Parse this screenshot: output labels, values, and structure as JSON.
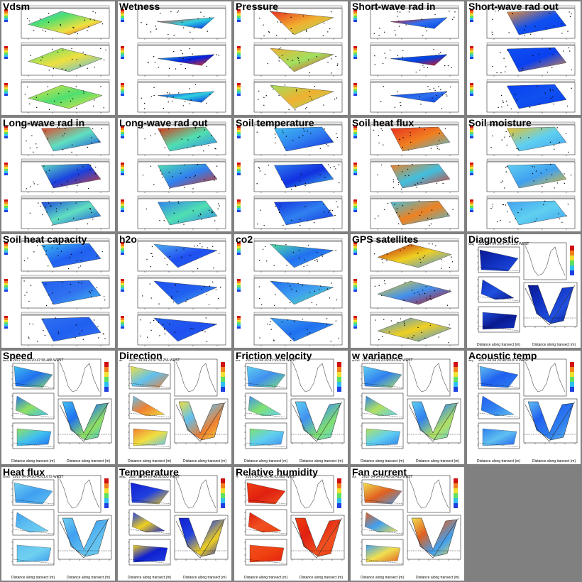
{
  "map_tiles": [
    {
      "id": "vdsm",
      "title": "Vdsm",
      "col": 0,
      "row": 0,
      "colors": [
        "#4ab8f0",
        "#4fe070",
        "#f0e040",
        "#e84030"
      ],
      "shape": "diamond"
    },
    {
      "id": "wetness",
      "title": "Wetness",
      "col": 1,
      "row": 0,
      "colors": [
        "#f03020",
        "#30d0e0",
        "#0020e0"
      ],
      "shape": "sliver"
    },
    {
      "id": "pressure",
      "title": "Pressure",
      "col": 2,
      "row": 0,
      "colors": [
        "#e83020",
        "#f0b030",
        "#a0e060"
      ],
      "shape": "triangle"
    },
    {
      "id": "sw-rad-in",
      "title": "Short-wave rad in",
      "col": 3,
      "row": 0,
      "colors": [
        "#e81010",
        "#3070f0",
        "#0040e0"
      ],
      "shape": "sliver"
    },
    {
      "id": "sw-rad-out",
      "title": "Short-wave rad out",
      "col": 4,
      "row": 0,
      "colors": [
        "#f09030",
        "#1050f0",
        "#0a40f0"
      ],
      "shape": "quad"
    },
    {
      "id": "lw-rad-in",
      "title": "Long-wave rad in",
      "col": 0,
      "row": 1,
      "colors": [
        "#e84020",
        "#60e0c0",
        "#1840e0"
      ],
      "shape": "quad"
    },
    {
      "id": "lw-rad-out",
      "title": "Long-wave rad out",
      "col": 1,
      "row": 1,
      "colors": [
        "#e03010",
        "#50e0b0",
        "#3080f0"
      ],
      "shape": "quad"
    },
    {
      "id": "soil-temp",
      "title": "Soil temperature",
      "col": 2,
      "row": 1,
      "colors": [
        "#40c0f0",
        "#3080f0",
        "#1030e0"
      ],
      "shape": "quad"
    },
    {
      "id": "soil-heat-flux",
      "title": "Soil heat flux",
      "col": 3,
      "row": 1,
      "colors": [
        "#e83020",
        "#f08020",
        "#40c0e0"
      ],
      "shape": "quad"
    },
    {
      "id": "soil-moisture",
      "title": "Soil moisture",
      "col": 4,
      "row": 1,
      "colors": [
        "#f0c020",
        "#60d0f0",
        "#40a0f0"
      ],
      "shape": "quad"
    },
    {
      "id": "soil-heat-cap",
      "title": "Soil heat capacity",
      "col": 0,
      "row": 2,
      "colors": [
        "#40c0f0",
        "#2060f0",
        "#3070f0"
      ],
      "shape": "quad"
    },
    {
      "id": "h2o",
      "title": "h2o",
      "col": 1,
      "row": 2,
      "colors": [
        "#50b0f0",
        "#2050f0",
        "#2060f0"
      ],
      "shape": "triangle"
    },
    {
      "id": "co2",
      "title": "co2",
      "col": 2,
      "row": 2,
      "colors": [
        "#50e0a0",
        "#2070f0",
        "#40a0f0"
      ],
      "shape": "triangle"
    },
    {
      "id": "gps-sat",
      "title": "GPS satellites",
      "col": 3,
      "row": 2,
      "colors": [
        "#c01010",
        "#f0d020",
        "#4090f0"
      ],
      "shape": "diamond"
    }
  ],
  "transect_tiles": [
    {
      "id": "diagnostic",
      "title": "Diagnostic",
      "col": 4,
      "row": 2,
      "timestamp": "2017 04 04 20:47:57.129 WEST",
      "unit": "Mag",
      "colors": [
        "#0a1a90",
        "#1030c0",
        "#2050e0"
      ]
    },
    {
      "id": "speed",
      "title": "Speed",
      "col": 0,
      "row": 3,
      "timestamp": "2017 04 04 20:47:58.488 WEST",
      "unit": "km/h",
      "colors": [
        "#40c0f0",
        "#2070f0",
        "#90e060"
      ]
    },
    {
      "id": "direction",
      "title": "Direction",
      "col": 1,
      "row": 3,
      "timestamp": "2017 04 04 20:47:59.256 WEST",
      "unit": "dir",
      "colors": [
        "#f0e040",
        "#60c0f0",
        "#f08030"
      ]
    },
    {
      "id": "friction-velocity",
      "title": "Friction velocity",
      "col": 2,
      "row": 3,
      "timestamp": "2017 04 04 20:47:59.914 WEST",
      "unit": "m/s",
      "colors": [
        "#60d0f0",
        "#4090f0",
        "#80e070"
      ]
    },
    {
      "id": "w-variance",
      "title": "w variance",
      "col": 3,
      "row": 3,
      "timestamp": "2017 04 04 20:48:00.302 WEST",
      "unit": "m2/s2",
      "colors": [
        "#60d0f0",
        "#3080f0",
        "#b0e060"
      ]
    },
    {
      "id": "acoustic-temp",
      "title": "Acoustic temp",
      "col": 4,
      "row": 3,
      "timestamp": "2017 04 04 20:48:00.874 WEST",
      "unit": "deg",
      "colors": [
        "#60c0f0",
        "#2060f0",
        "#3080f0"
      ]
    },
    {
      "id": "heat-flux",
      "title": "Heat flux",
      "col": 0,
      "row": 4,
      "timestamp": "2017 04 04 20:48:01.079 WEST",
      "unit": "W/m2",
      "colors": [
        "#70d0f0",
        "#40a0f0",
        "#60c0f0"
      ]
    },
    {
      "id": "temperature",
      "title": "Temperature",
      "col": 1,
      "row": 4,
      "timestamp": "2017 04 04 20:48:01.653 WEST",
      "unit": "degC",
      "colors": [
        "#1020d0",
        "#2040e0",
        "#f0d020"
      ]
    },
    {
      "id": "relative-humidity",
      "title": "Relative humidity",
      "col": 2,
      "row": 4,
      "timestamp": "2017 04 04 20:48:02.089 WEST",
      "unit": "%",
      "colors": [
        "#f04010",
        "#e02010",
        "#f05020"
      ]
    },
    {
      "id": "fan-current",
      "title": "Fan current",
      "col": 3,
      "row": 4,
      "timestamp": "2017 04 04 20:48:02.415 WEST",
      "unit": "mA",
      "colors": [
        "#f0e050",
        "#e06020",
        "#40a0f0"
      ]
    }
  ],
  "transect_axis_label": "Distance along transect (m)"
}
